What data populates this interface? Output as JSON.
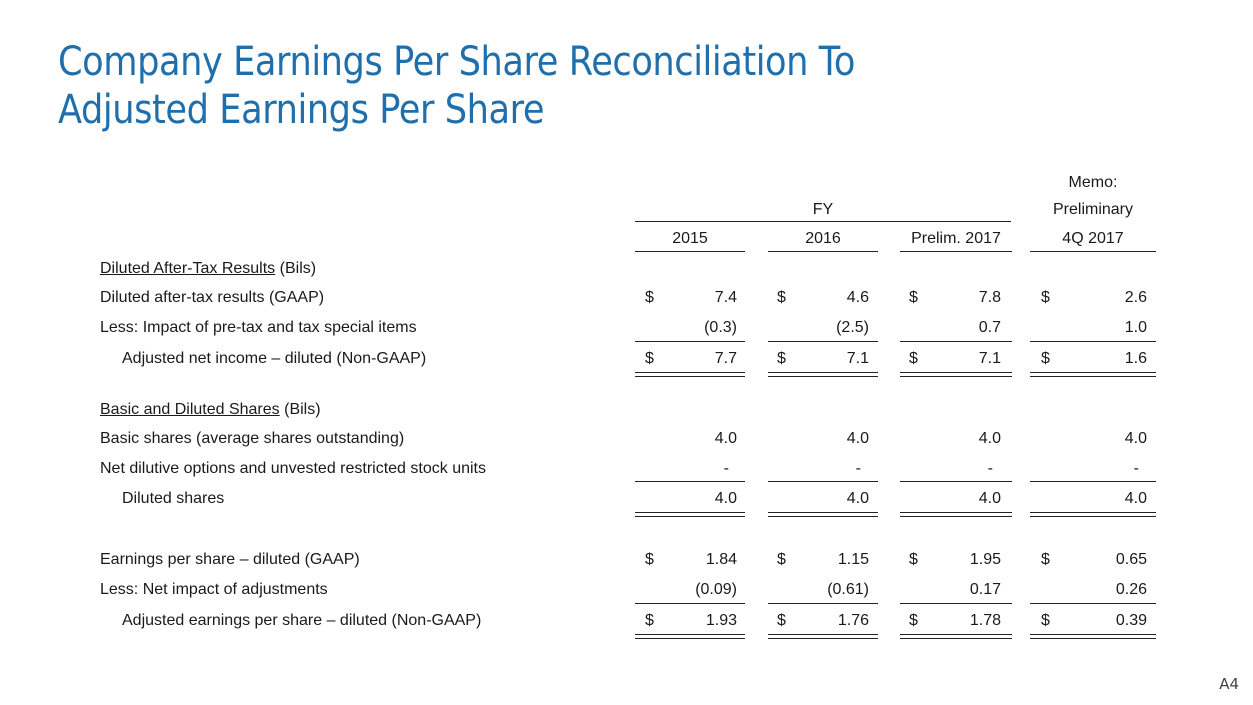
{
  "title": {
    "line1": "Company Earnings Per Share Reconciliation To",
    "line2": "Adjusted Earnings Per Share"
  },
  "header": {
    "memo": "Memo:",
    "fy": "FY",
    "preliminary": "Preliminary",
    "columns": [
      "2015",
      "2016",
      "Prelim. 2017",
      "4Q 2017"
    ]
  },
  "sections": {
    "s1_title": "Diluted After-Tax Results",
    "s1_unit": "(Bils)",
    "s2_title": "Basic and Diluted Shares",
    "s2_unit": "(Bils)"
  },
  "rows": [
    {
      "label": "Diluted after-tax results (GAAP)",
      "dollar": "$",
      "values": [
        "7.4",
        "4.6",
        "7.8",
        "2.6"
      ]
    },
    {
      "label": "Less:  Impact of pre-tax and tax special items",
      "dollar": "",
      "values": [
        "(0.3)",
        "(2.5)",
        "0.7",
        "1.0"
      ]
    },
    {
      "label": "Adjusted net income – diluted (Non-GAAP)",
      "dollar": "$",
      "values": [
        "7.7",
        "7.1",
        "7.1",
        "1.6"
      ]
    },
    {
      "label": "Basic shares (average shares outstanding)",
      "dollar": "",
      "values": [
        "4.0",
        "4.0",
        "4.0",
        "4.0"
      ]
    },
    {
      "label": "Net dilutive options and unvested restricted stock units",
      "dollar": "",
      "values": [
        "-",
        "-",
        "-",
        "-"
      ]
    },
    {
      "label": "Diluted shares",
      "dollar": "",
      "values": [
        "4.0",
        "4.0",
        "4.0",
        "4.0"
      ]
    },
    {
      "label": "Earnings per share – diluted (GAAP)",
      "dollar": "$",
      "values": [
        "1.84",
        "1.15",
        "1.95",
        "0.65"
      ]
    },
    {
      "label": "Less:  Net impact of adjustments",
      "dollar": "",
      "values": [
        "(0.09)",
        "(0.61)",
        "0.17",
        "0.26"
      ]
    },
    {
      "label": "Adjusted earnings per share – diluted (Non-GAAP)",
      "dollar": "$",
      "values": [
        "1.93",
        "1.76",
        "1.78",
        "0.39"
      ]
    }
  ],
  "page_number": "A4"
}
